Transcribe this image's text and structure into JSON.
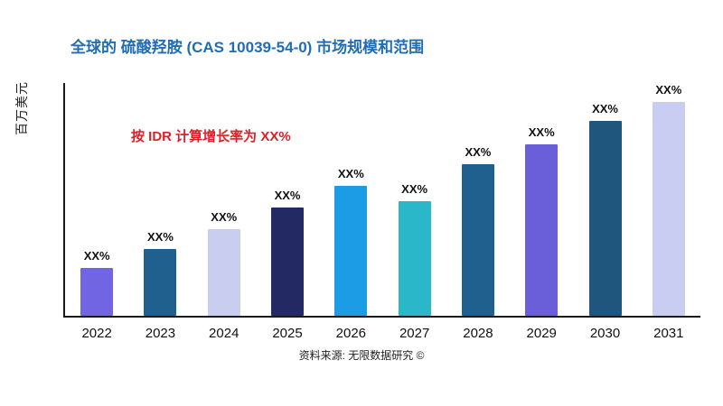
{
  "title": "全球的 硫酸羟胺 (CAS 10039-54-0) 市场规模和范围",
  "title_color": "#1f6eb5",
  "growth_note": "按 IDR 计算增长率为 XX%",
  "growth_note_color": "#e21d25",
  "ylabel": "百万美元",
  "source": "资料来源: 无限数据研究 ©",
  "chart_data": {
    "type": "bar",
    "title": "全球的 硫酸羟胺 (CAS 10039-54-0) 市场规模和范围",
    "xlabel": "",
    "ylabel": "百万美元",
    "categories": [
      "2022",
      "2023",
      "2024",
      "2025",
      "2026",
      "2027",
      "2028",
      "2029",
      "2030",
      "2031"
    ],
    "values": [
      22,
      31,
      40,
      50,
      60,
      53,
      70,
      79,
      90,
      100
    ],
    "value_labels": [
      "XX%",
      "XX%",
      "XX%",
      "XX%",
      "XX%",
      "XX%",
      "XX%",
      "XX%",
      "XX%",
      "XX%"
    ],
    "bar_colors": [
      "#7165e3",
      "#20608f",
      "#c9cdf0",
      "#232a63",
      "#1b9ce5",
      "#2ab7c9",
      "#20608f",
      "#6a5fd8",
      "#1f567d",
      "#c9cdf2"
    ],
    "ylim": [
      0,
      100
    ],
    "grid": false,
    "legend": "none",
    "annotation": "按 IDR 计算增长率为 XX%"
  }
}
